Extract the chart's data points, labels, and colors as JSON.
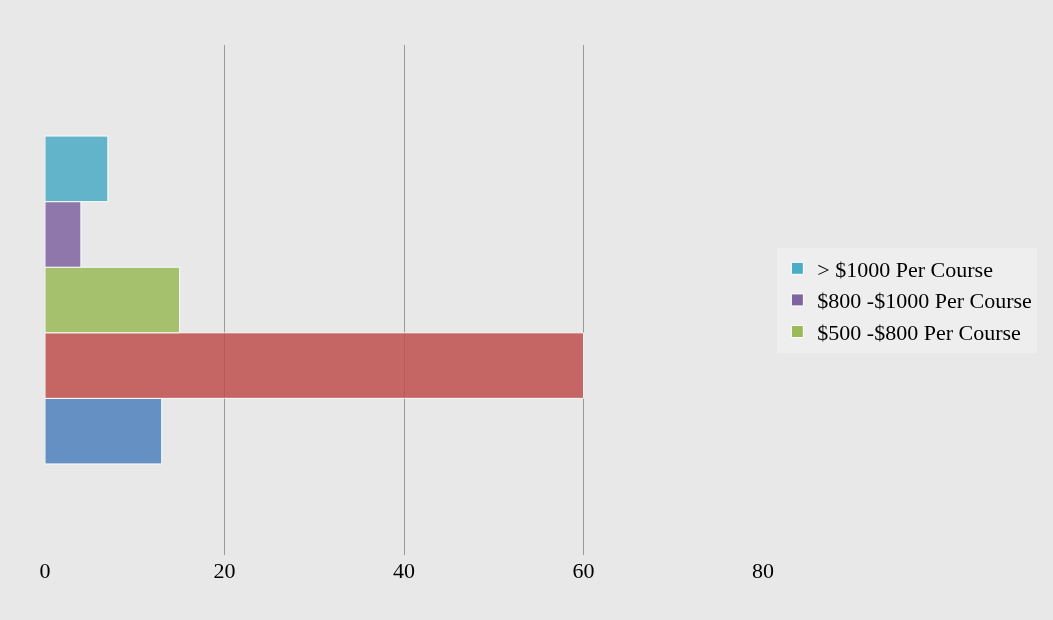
{
  "chart_data": {
    "type": "bar",
    "orientation": "horizontal",
    "categories": [
      null
    ],
    "series": [
      {
        "color": "#4f81bd",
        "values": [
          13
        ]
      },
      {
        "color": "#c0504d",
        "values": [
          60
        ]
      },
      {
        "name": "$500 -$800 Per Course",
        "color": "#9bbb59",
        "values": [
          15
        ]
      },
      {
        "name": "$800 -$1000 Per Course",
        "color": "#8064a2",
        "values": [
          4
        ]
      },
      {
        "name": "> $1000 Per Course",
        "color": "#4bacc6",
        "values": [
          7
        ]
      }
    ],
    "xlim": [
      0,
      80
    ],
    "xticks": [
      0,
      20,
      40,
      60,
      80
    ],
    "grid": "x",
    "legend": "right",
    "tick_labels": "x"
  }
}
